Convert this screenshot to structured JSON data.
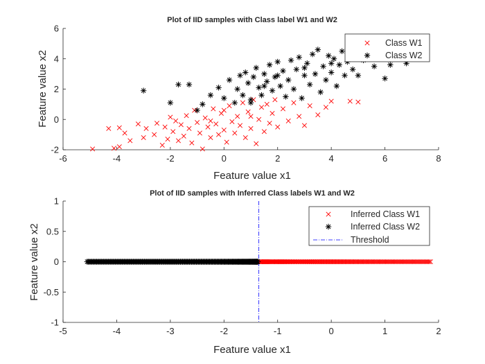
{
  "chart_data": [
    {
      "type": "scatter",
      "title": "Plot of IID samples with Class label W1 and W2",
      "xlabel": "Feature value x1",
      "ylabel": "Feature value x2",
      "xlim": [
        -6,
        8
      ],
      "ylim": [
        -2,
        6
      ],
      "xticks": [
        -6,
        -4,
        -2,
        0,
        2,
        4,
        6,
        8
      ],
      "yticks": [
        -2,
        0,
        2,
        4,
        6
      ],
      "xtick_labels": [
        "-6",
        "-4",
        "-2",
        "0",
        "2",
        "4",
        "6",
        "8"
      ],
      "ytick_labels": [
        "-2",
        "0",
        "2",
        "4",
        "6"
      ],
      "legend_position": "top-right",
      "series": [
        {
          "name": "Class W1",
          "marker": "x",
          "color": "#ff0000",
          "points": [
            [
              -4.9,
              -1.95
            ],
            [
              -4.3,
              -0.6
            ],
            [
              -4.1,
              -1.9
            ],
            [
              -3.9,
              -0.55
            ],
            [
              -3.9,
              -1.8
            ],
            [
              -3.7,
              -0.9
            ],
            [
              -3.5,
              -1.4
            ],
            [
              -3.2,
              -0.3
            ],
            [
              -3.0,
              -1.2
            ],
            [
              -2.9,
              -0.6
            ],
            [
              -2.6,
              -1.0
            ],
            [
              -2.5,
              -0.25
            ],
            [
              -2.3,
              -1.7
            ],
            [
              -2.2,
              -0.5
            ],
            [
              -2.1,
              -1.3
            ],
            [
              -1.9,
              -0.8
            ],
            [
              -1.8,
              -0.1
            ],
            [
              -1.7,
              -1.4
            ],
            [
              -1.6,
              -0.35
            ],
            [
              -1.5,
              -1.1
            ],
            [
              -1.4,
              0.25
            ],
            [
              -1.3,
              -0.6
            ],
            [
              -1.2,
              -1.55
            ],
            [
              -1.1,
              0.6
            ],
            [
              -1.0,
              -0.2
            ],
            [
              -0.9,
              -0.9
            ],
            [
              -0.8,
              -1.95
            ],
            [
              -0.7,
              0.1
            ],
            [
              -0.6,
              -0.5
            ],
            [
              -0.5,
              -1.2
            ],
            [
              -0.4,
              0.7
            ],
            [
              -0.3,
              -0.3
            ],
            [
              -0.2,
              -1.0
            ],
            [
              -0.1,
              0.4
            ],
            [
              0.0,
              -0.7
            ],
            [
              0.1,
              -1.5
            ],
            [
              0.2,
              0.9
            ],
            [
              0.3,
              -0.15
            ],
            [
              0.4,
              -0.9
            ],
            [
              0.5,
              0.2
            ],
            [
              0.6,
              -0.4
            ],
            [
              0.7,
              1.1
            ],
            [
              0.8,
              -1.2
            ],
            [
              0.9,
              0.5
            ],
            [
              1.0,
              -0.6
            ],
            [
              1.1,
              1.3
            ],
            [
              1.2,
              -1.6
            ],
            [
              1.3,
              0.0
            ],
            [
              1.4,
              0.8
            ],
            [
              1.5,
              -0.8
            ],
            [
              1.6,
              1.0
            ],
            [
              1.7,
              -0.25
            ],
            [
              1.8,
              0.4
            ],
            [
              1.9,
              1.3
            ],
            [
              2.0,
              -0.5
            ],
            [
              2.2,
              0.7
            ],
            [
              2.4,
              -0.1
            ],
            [
              2.6,
              1.1
            ],
            [
              2.8,
              0.2
            ],
            [
              3.0,
              -0.4
            ],
            [
              3.2,
              0.9
            ],
            [
              3.5,
              0.3
            ],
            [
              3.8,
              0.8
            ],
            [
              4.0,
              1.2
            ],
            [
              4.7,
              1.2
            ],
            [
              5.0,
              1.15
            ],
            [
              -2.0,
              0.15
            ],
            [
              0.0,
              0.6
            ],
            [
              1.0,
              0.2
            ],
            [
              -0.5,
              -0.1
            ]
          ]
        },
        {
          "name": "Class W2",
          "marker": "*",
          "color": "#000000",
          "points": [
            [
              -3.0,
              1.9
            ],
            [
              -2.0,
              1.1
            ],
            [
              -1.7,
              2.3
            ],
            [
              -1.3,
              2.3
            ],
            [
              -1.0,
              0.6
            ],
            [
              -0.8,
              1.0
            ],
            [
              -0.5,
              1.6
            ],
            [
              -0.2,
              2.1
            ],
            [
              0.0,
              1.4
            ],
            [
              0.2,
              2.6
            ],
            [
              0.4,
              1.1
            ],
            [
              0.5,
              2.0
            ],
            [
              0.6,
              2.9
            ],
            [
              0.7,
              1.6
            ],
            [
              0.8,
              3.1
            ],
            [
              0.9,
              2.4
            ],
            [
              1.0,
              1.3
            ],
            [
              1.1,
              2.8
            ],
            [
              1.2,
              3.4
            ],
            [
              1.3,
              2.1
            ],
            [
              1.4,
              1.6
            ],
            [
              1.5,
              3.0
            ],
            [
              1.6,
              2.5
            ],
            [
              1.7,
              3.6
            ],
            [
              1.8,
              1.9
            ],
            [
              1.9,
              2.8
            ],
            [
              2.0,
              3.8
            ],
            [
              2.1,
              2.2
            ],
            [
              2.2,
              3.2
            ],
            [
              2.3,
              1.5
            ],
            [
              2.4,
              2.6
            ],
            [
              2.5,
              3.9
            ],
            [
              2.6,
              2.0
            ],
            [
              2.7,
              3.3
            ],
            [
              2.8,
              4.1
            ],
            [
              2.9,
              1.4
            ],
            [
              3.0,
              2.9
            ],
            [
              3.1,
              3.7
            ],
            [
              3.2,
              2.3
            ],
            [
              3.3,
              4.3
            ],
            [
              3.4,
              3.0
            ],
            [
              3.5,
              4.6
            ],
            [
              3.6,
              1.8
            ],
            [
              3.7,
              3.5
            ],
            [
              3.8,
              2.6
            ],
            [
              3.9,
              4.2
            ],
            [
              4.0,
              3.1
            ],
            [
              4.1,
              4.0
            ],
            [
              4.2,
              2.2
            ],
            [
              4.3,
              3.6
            ],
            [
              4.4,
              4.5
            ],
            [
              4.5,
              2.9
            ],
            [
              4.6,
              3.8
            ],
            [
              4.7,
              4.8
            ],
            [
              4.8,
              3.3
            ],
            [
              4.9,
              4.1
            ],
            [
              5.0,
              2.9
            ],
            [
              5.2,
              3.9
            ],
            [
              5.4,
              4.4
            ],
            [
              5.6,
              3.5
            ],
            [
              5.8,
              4.0
            ],
            [
              6.0,
              2.7
            ],
            [
              6.2,
              3.6
            ],
            [
              6.8,
              3.7
            ],
            [
              7.0,
              4.2
            ],
            [
              1.0,
              1.1
            ],
            [
              2.0,
              2.9
            ],
            [
              3.0,
              3.4
            ],
            [
              4.0,
              3.7
            ],
            [
              1.5,
              2.2
            ]
          ]
        }
      ]
    },
    {
      "type": "scatter",
      "title": "Plot of IID samples with Inferred Class labels W1 and W2",
      "xlabel": "Feature value x1",
      "ylabel": "Feature value x2",
      "xlim": [
        -5,
        2
      ],
      "ylim": [
        -1,
        1
      ],
      "xticks": [
        -5,
        -4,
        -3,
        -2,
        -1,
        0,
        1,
        2
      ],
      "yticks": [
        -1,
        -0.5,
        0,
        0.5,
        1
      ],
      "xtick_labels": [
        "-5",
        "-4",
        "-3",
        "-2",
        "-1",
        "0",
        "1",
        "2"
      ],
      "ytick_labels": [
        "-1",
        "-0.5",
        "0",
        "0.5",
        "1"
      ],
      "legend_position": "top-right",
      "threshold": -1.35,
      "series": [
        {
          "name": "Inferred Class W1",
          "marker": "x",
          "color": "#ff0000",
          "x_range": [
            -1.33,
            1.85
          ],
          "count": 160,
          "y": 0
        },
        {
          "name": "Inferred Class W2",
          "marker": "*",
          "color": "#000000",
          "x_range": [
            -4.55,
            -1.37
          ],
          "count": 180,
          "y": 0
        },
        {
          "name": "Threshold",
          "marker": "dash-dot line",
          "color": "#0000ff"
        }
      ]
    }
  ]
}
